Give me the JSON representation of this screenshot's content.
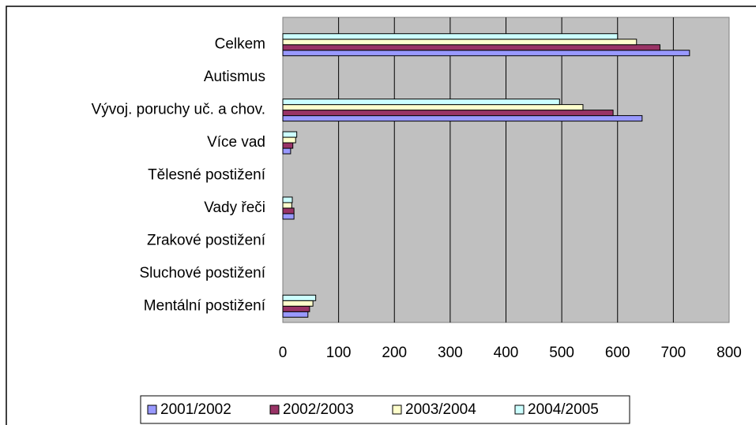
{
  "chart_data": {
    "type": "barh",
    "categories": [
      "Mentální postižení",
      "Sluchové postižení",
      "Zrakové postižení",
      "Vady řeči",
      "Tělesné postižení",
      "Více vad",
      "Vývoj. poruchy uč. a chov.",
      "Autismus",
      "Celkem"
    ],
    "series": [
      {
        "name": "2001/2002",
        "color": "#9999ff",
        "values": [
          45,
          0,
          0,
          20,
          0,
          14,
          644,
          0,
          729
        ]
      },
      {
        "name": "2002/2003",
        "color": "#993366",
        "values": [
          48,
          0,
          0,
          20,
          0,
          18,
          592,
          0,
          676
        ]
      },
      {
        "name": "2003/2004",
        "color": "#ffffcc",
        "values": [
          54,
          0,
          0,
          16,
          0,
          23,
          538,
          0,
          634
        ]
      },
      {
        "name": "2004/2005",
        "color": "#ccffff",
        "values": [
          59,
          0,
          0,
          17,
          0,
          25,
          496,
          0,
          600
        ]
      }
    ],
    "xlim": [
      0,
      800
    ],
    "xticks": [
      0,
      100,
      200,
      300,
      400,
      500,
      600,
      700,
      800
    ],
    "grid": true,
    "legend": "bottom"
  }
}
